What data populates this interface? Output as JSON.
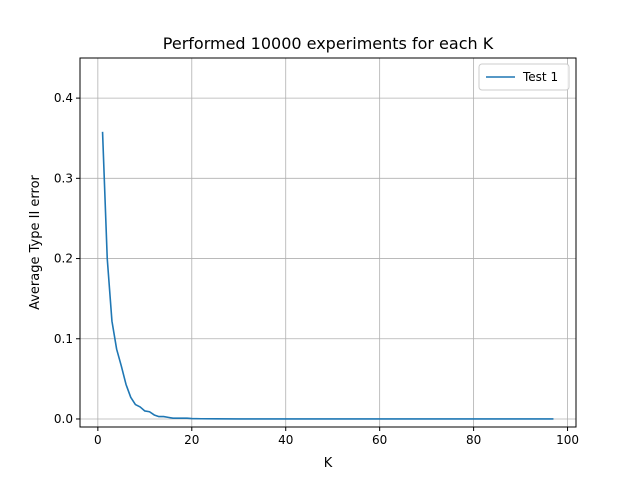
{
  "chart_data": {
    "type": "line",
    "title": "Performed 10000 experiments for each K",
    "xlabel": "K",
    "ylabel": "Average Type II error",
    "xlim": [
      -3.8,
      101.8
    ],
    "ylim": [
      -0.01,
      0.45
    ],
    "xticks": [
      0,
      20,
      40,
      60,
      80,
      100
    ],
    "yticks": [
      0.0,
      0.1,
      0.2,
      0.3,
      0.4
    ],
    "xtick_labels": [
      "0",
      "20",
      "40",
      "60",
      "80",
      "100"
    ],
    "ytick_labels": [
      "0.0",
      "0.1",
      "0.2",
      "0.3",
      "0.4"
    ],
    "grid": true,
    "legend_position": "top-right",
    "series": [
      {
        "name": "Test 1",
        "color": "#1f77b4",
        "x": [
          1,
          2,
          3,
          4,
          5,
          6,
          7,
          8,
          9,
          10,
          11,
          12,
          13,
          14,
          15,
          16,
          17,
          18,
          19,
          20,
          22,
          25,
          30,
          40,
          50,
          60,
          70,
          80,
          90,
          97
        ],
        "y": [
          0.358,
          0.2,
          0.122,
          0.087,
          0.066,
          0.043,
          0.027,
          0.018,
          0.015,
          0.01,
          0.009,
          0.005,
          0.003,
          0.003,
          0.002,
          0.001,
          0.001,
          0.001,
          0.001,
          0.0005,
          0.0003,
          0.0002,
          0.0001,
          0.0,
          0.0,
          0.0,
          0.0,
          0.0,
          0.0,
          0.0
        ]
      }
    ]
  }
}
